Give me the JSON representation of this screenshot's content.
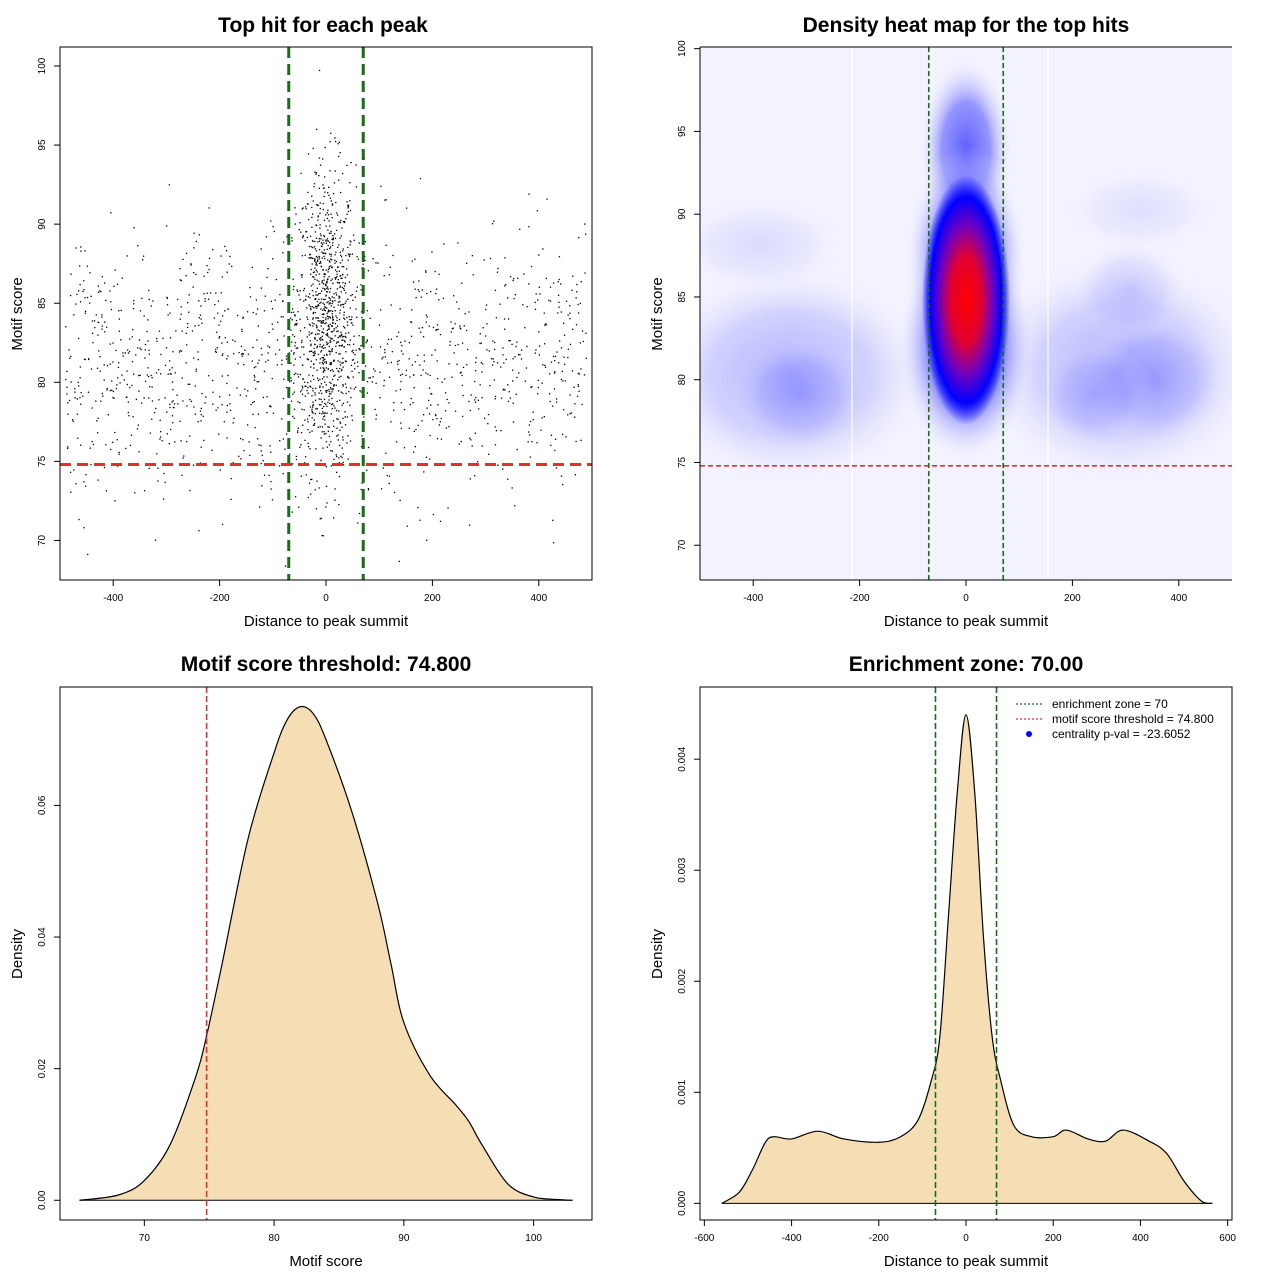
{
  "chart_data": [
    {
      "type": "scatter",
      "title": "Top hit for each peak",
      "xlabel": "Distance to peak summit",
      "ylabel": "Motif score",
      "xlim": [
        -500,
        500
      ],
      "ylim": [
        67.5,
        101.2
      ],
      "xticks": [
        "-400",
        "-200",
        "0",
        "200",
        "400"
      ],
      "yticks": [
        "70",
        "75",
        "80",
        "85",
        "90",
        "95",
        "100"
      ],
      "vlines": [
        -70,
        70
      ],
      "hline": 74.8,
      "point_count": 2200,
      "colors": {
        "points": "#000000",
        "vlines": "#1a6b1a",
        "hline": "#e03030"
      }
    },
    {
      "type": "heatmap",
      "title": "Density heat map for the top hits",
      "xlabel": "Distance to peak summit",
      "ylabel": "Motif score",
      "xlim": [
        -500,
        500
      ],
      "ylim": [
        67.9,
        100.1
      ],
      "xticks": [
        "-400",
        "-200",
        "0",
        "200",
        "400"
      ],
      "yticks": [
        "70",
        "75",
        "80",
        "85",
        "90",
        "95",
        "100"
      ],
      "vlines": [
        -70,
        70
      ],
      "hline": 74.8,
      "density_peak": {
        "x": 0,
        "y": 84
      },
      "colors": {
        "low": "#ffffff",
        "mid": "#0000ff",
        "high": "#ff0000"
      }
    },
    {
      "type": "area",
      "title": "Motif score threshold: 74.800",
      "xlabel": "Motif score",
      "ylabel": "Density",
      "xlim": [
        63.5,
        104.5
      ],
      "ylim": [
        -0.003,
        0.078
      ],
      "xticks": [
        "70",
        "80",
        "90",
        "100"
      ],
      "yticks": [
        "0.00",
        "0.02",
        "0.04",
        "0.06"
      ],
      "vline": 74.8,
      "x": [
        65,
        68,
        70,
        72,
        74,
        74.8,
        76,
        78,
        80,
        81,
        82,
        83,
        84,
        86,
        88,
        89,
        90,
        92,
        94,
        95,
        96,
        98,
        100,
        102,
        103
      ],
      "y": [
        0.0,
        0.0008,
        0.003,
        0.0085,
        0.019,
        0.025,
        0.036,
        0.055,
        0.068,
        0.073,
        0.075,
        0.074,
        0.07,
        0.059,
        0.045,
        0.036,
        0.027,
        0.019,
        0.0145,
        0.012,
        0.0085,
        0.0025,
        0.0005,
        0.0001,
        0.0
      ],
      "colors": {
        "fill": "#f5deb3",
        "line": "#000000",
        "vline": "#e03030"
      }
    },
    {
      "type": "area",
      "title": "Enrichment zone: 70.00",
      "xlabel": "Distance to peak summit",
      "ylabel": "Density",
      "xlim": [
        -610,
        610
      ],
      "ylim": [
        -0.00015,
        0.00465
      ],
      "xticks": [
        "-600",
        "-400",
        "-200",
        "0",
        "200",
        "400",
        "600"
      ],
      "yticks": [
        "0.000",
        "0.001",
        "0.002",
        "0.003",
        "0.004"
      ],
      "vlines": [
        -70,
        70
      ],
      "x": [
        -560,
        -520,
        -490,
        -460,
        -440,
        -400,
        -340,
        -280,
        -200,
        -150,
        -110,
        -80,
        -60,
        -40,
        -20,
        0,
        20,
        40,
        60,
        80,
        110,
        150,
        200,
        230,
        280,
        320,
        360,
        420,
        460,
        500,
        540,
        565
      ],
      "y": [
        0.0,
        0.0001,
        0.0003,
        0.00055,
        0.0006,
        0.00058,
        0.00065,
        0.00058,
        0.00055,
        0.0006,
        0.00075,
        0.0011,
        0.0015,
        0.0026,
        0.0037,
        0.0044,
        0.0037,
        0.0024,
        0.0015,
        0.0011,
        0.0007,
        0.0006,
        0.0006,
        0.00066,
        0.00058,
        0.00056,
        0.00066,
        0.00056,
        0.00045,
        0.0002,
        2e-05,
        0.0
      ],
      "legend": {
        "placement": "top-right",
        "entries": [
          "enrichment zone = 70",
          "motif score threshold = 74.800",
          "centrality p-val = -23.6052"
        ]
      },
      "colors": {
        "fill": "#f5deb3",
        "line": "#000000",
        "vlines": "#1a6b1a",
        "threshold": "#e03030",
        "pval": "#0000ff"
      }
    }
  ]
}
